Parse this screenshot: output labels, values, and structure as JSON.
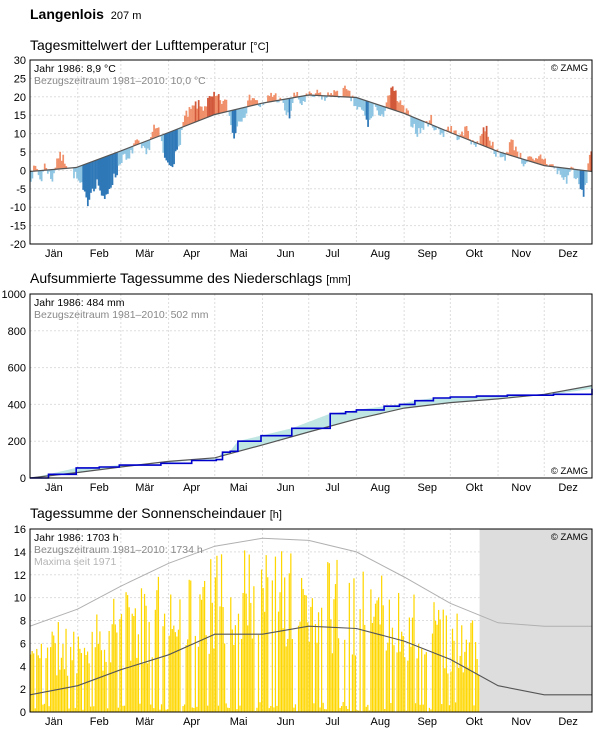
{
  "station": {
    "name": "Langenlois",
    "altitude": "207 m"
  },
  "months": [
    "Jän",
    "Feb",
    "Mär",
    "Apr",
    "Mai",
    "Jun",
    "Jul",
    "Aug",
    "Sep",
    "Okt",
    "Nov",
    "Dez"
  ],
  "copyright": "© ZAMG",
  "colors": {
    "warm": "#f0906a",
    "warm_strong": "#d2583a",
    "cold": "#8ec5e2",
    "cold_strong": "#2e78b8",
    "normal_line": "#555555",
    "precip_year": "#0000cc",
    "precip_area": "#bfe6e3",
    "sun_bars": "#ffd700",
    "sun_max": "#b0b0b0",
    "future_shade": "#dddddd"
  },
  "temperature": {
    "title": "Tagesmittelwert der Lufttemperatur",
    "unit": "[°C]",
    "legend_year": "Jahr 1986: 8,9 °C",
    "legend_ref": "Bezugszeitraum 1981–2010: 10,0 °C",
    "y_ticks": [
      "30",
      "25",
      "20",
      "15",
      "10",
      "5",
      "0",
      "-5",
      "-10",
      "-15",
      "-20"
    ],
    "chart_data": {
      "type": "bar",
      "ylim": [
        -20,
        30
      ],
      "x_unit": "day of year 1986",
      "normal_series": [
        [
          0,
          -0.3
        ],
        [
          30,
          0.8
        ],
        [
          59,
          5.3
        ],
        [
          90,
          10.3
        ],
        [
          120,
          15.2
        ],
        [
          151,
          18.3
        ],
        [
          181,
          20.5
        ],
        [
          212,
          19.8
        ],
        [
          243,
          15.5
        ],
        [
          273,
          10.3
        ],
        [
          304,
          5.1
        ],
        [
          334,
          1.3
        ],
        [
          365,
          -0.3
        ]
      ],
      "year_series": [
        [
          0,
          -2
        ],
        [
          4,
          1
        ],
        [
          7,
          -3
        ],
        [
          10,
          2
        ],
        [
          14,
          -3
        ],
        [
          18,
          4
        ],
        [
          22,
          3
        ],
        [
          26,
          1
        ],
        [
          30,
          -2
        ],
        [
          34,
          -5
        ],
        [
          37,
          -9
        ],
        [
          40,
          -5
        ],
        [
          44,
          -3
        ],
        [
          48,
          -9
        ],
        [
          52,
          -4
        ],
        [
          56,
          -1
        ],
        [
          60,
          4
        ],
        [
          64,
          2
        ],
        [
          68,
          8
        ],
        [
          72,
          6
        ],
        [
          76,
          4
        ],
        [
          80,
          12
        ],
        [
          84,
          10
        ],
        [
          88,
          2
        ],
        [
          92,
          2
        ],
        [
          96,
          5
        ],
        [
          100,
          14
        ],
        [
          104,
          16
        ],
        [
          108,
          18
        ],
        [
          112,
          17
        ],
        [
          116,
          19
        ],
        [
          120,
          20
        ],
        [
          124,
          19
        ],
        [
          128,
          18
        ],
        [
          132,
          9
        ],
        [
          136,
          14
        ],
        [
          140,
          16
        ],
        [
          144,
          21
        ],
        [
          148,
          18
        ],
        [
          152,
          17
        ],
        [
          156,
          21
        ],
        [
          160,
          20
        ],
        [
          164,
          18
        ],
        [
          168,
          14
        ],
        [
          172,
          21
        ],
        [
          176,
          18
        ],
        [
          180,
          20
        ],
        [
          184,
          20
        ],
        [
          188,
          21
        ],
        [
          192,
          19
        ],
        [
          196,
          22
        ],
        [
          200,
          20
        ],
        [
          204,
          22
        ],
        [
          208,
          20
        ],
        [
          212,
          17
        ],
        [
          216,
          16
        ],
        [
          220,
          12
        ],
        [
          224,
          18
        ],
        [
          228,
          13
        ],
        [
          232,
          20
        ],
        [
          236,
          22
        ],
        [
          240,
          18
        ],
        [
          244,
          16
        ],
        [
          248,
          13
        ],
        [
          252,
          10
        ],
        [
          256,
          12
        ],
        [
          260,
          14
        ],
        [
          264,
          11
        ],
        [
          268,
          10
        ],
        [
          272,
          12
        ],
        [
          276,
          10
        ],
        [
          280,
          9
        ],
        [
          284,
          12
        ],
        [
          288,
          6
        ],
        [
          292,
          9
        ],
        [
          296,
          12
        ],
        [
          300,
          7
        ],
        [
          304,
          4
        ],
        [
          308,
          3
        ],
        [
          312,
          8
        ],
        [
          316,
          6
        ],
        [
          320,
          2
        ],
        [
          324,
          3
        ],
        [
          328,
          2
        ],
        [
          332,
          4
        ],
        [
          336,
          2
        ],
        [
          340,
          1
        ],
        [
          344,
          -1
        ],
        [
          348,
          -3
        ],
        [
          352,
          1
        ],
        [
          356,
          -4
        ],
        [
          360,
          -7
        ],
        [
          364,
          6
        ]
      ]
    }
  },
  "precipitation": {
    "title": "Aufsummierte Tagessumme des Niederschlags",
    "unit": "[mm]",
    "legend_year": "Jahr 1986: 484 mm",
    "legend_ref": "Bezugszeitraum 1981–2010: 502 mm",
    "y_ticks": [
      "1000",
      "800",
      "600",
      "400",
      "200",
      "0"
    ],
    "chart_data": {
      "type": "area",
      "ylim": [
        0,
        1000
      ],
      "x_unit": "day of year 1986",
      "year_series": [
        [
          0,
          0
        ],
        [
          12,
          20
        ],
        [
          30,
          55
        ],
        [
          45,
          60
        ],
        [
          58,
          70
        ],
        [
          85,
          80
        ],
        [
          105,
          95
        ],
        [
          121,
          100
        ],
        [
          125,
          140
        ],
        [
          130,
          145
        ],
        [
          135,
          200
        ],
        [
          150,
          230
        ],
        [
          170,
          270
        ],
        [
          195,
          350
        ],
        [
          205,
          360
        ],
        [
          212,
          370
        ],
        [
          230,
          390
        ],
        [
          240,
          400
        ],
        [
          250,
          420
        ],
        [
          262,
          435
        ],
        [
          273,
          440
        ],
        [
          290,
          445
        ],
        [
          310,
          450
        ],
        [
          340,
          455
        ],
        [
          365,
          485
        ]
      ],
      "normal_series": [
        [
          0,
          0
        ],
        [
          31,
          30
        ],
        [
          59,
          60
        ],
        [
          90,
          90
        ],
        [
          120,
          110
        ],
        [
          151,
          180
        ],
        [
          181,
          250
        ],
        [
          212,
          320
        ],
        [
          243,
          380
        ],
        [
          273,
          410
        ],
        [
          304,
          430
        ],
        [
          334,
          455
        ],
        [
          365,
          502
        ]
      ]
    }
  },
  "sunshine": {
    "title": "Tagessumme der Sonnenscheindauer",
    "unit": "[h]",
    "legend_year": "Jahr 1986: 1703 h",
    "legend_ref": "Bezugszeitraum 1981–2010: 1734 h",
    "legend_max": "Maxima seit 1971",
    "y_ticks": [
      "16",
      "14",
      "12",
      "10",
      "8",
      "6",
      "4",
      "2",
      "0"
    ],
    "chart_data": {
      "type": "bar",
      "ylim": [
        0,
        16
      ],
      "x_unit": "day of year 1986",
      "data_until_day": 292,
      "normal_series": [
        [
          0,
          1.5
        ],
        [
          31,
          2.3
        ],
        [
          59,
          3.7
        ],
        [
          90,
          5.0
        ],
        [
          120,
          6.8
        ],
        [
          151,
          6.8
        ],
        [
          181,
          7.5
        ],
        [
          212,
          7.3
        ],
        [
          243,
          6.2
        ],
        [
          273,
          4.6
        ],
        [
          304,
          2.3
        ],
        [
          334,
          1.5
        ],
        [
          365,
          1.5
        ]
      ],
      "max_series": [
        [
          0,
          7.5
        ],
        [
          31,
          9.0
        ],
        [
          59,
          11.0
        ],
        [
          90,
          13.0
        ],
        [
          120,
          14.5
        ],
        [
          151,
          15.2
        ],
        [
          181,
          15.0
        ],
        [
          212,
          14.0
        ],
        [
          243,
          11.8
        ],
        [
          273,
          9.5
        ],
        [
          304,
          7.8
        ],
        [
          334,
          7.5
        ],
        [
          365,
          7.5
        ]
      ]
    }
  }
}
